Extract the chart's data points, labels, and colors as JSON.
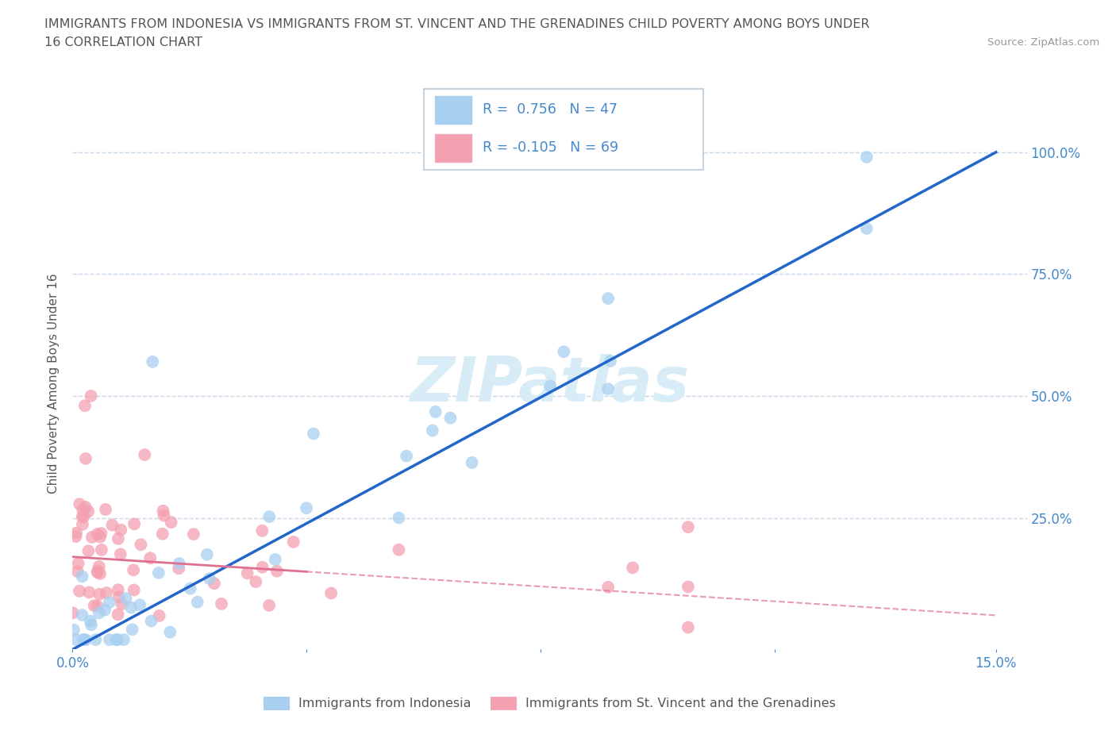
{
  "title_line1": "IMMIGRANTS FROM INDONESIA VS IMMIGRANTS FROM ST. VINCENT AND THE GRENADINES CHILD POVERTY AMONG BOYS UNDER",
  "title_line2": "16 CORRELATION CHART",
  "source_text": "Source: ZipAtlas.com",
  "ylabel": "Child Poverty Among Boys Under 16",
  "r_indonesia": 0.756,
  "n_indonesia": 47,
  "r_stv": -0.105,
  "n_stv": 69,
  "color_indonesia": "#A8D0F0",
  "color_stv": "#F4A0B0",
  "color_indonesia_line": "#2266CC",
  "color_stv_line": "#E07090",
  "watermark_color": "#D8ECF8",
  "legend_label_indonesia": "Immigrants from Indonesia",
  "legend_label_stv": "Immigrants from St. Vincent and the Grenadines",
  "grid_color": "#C8D8E8",
  "background_color": "#FFFFFF",
  "title_color": "#555555",
  "axis_label_color": "#555555",
  "tick_label_color": "#4488CC"
}
